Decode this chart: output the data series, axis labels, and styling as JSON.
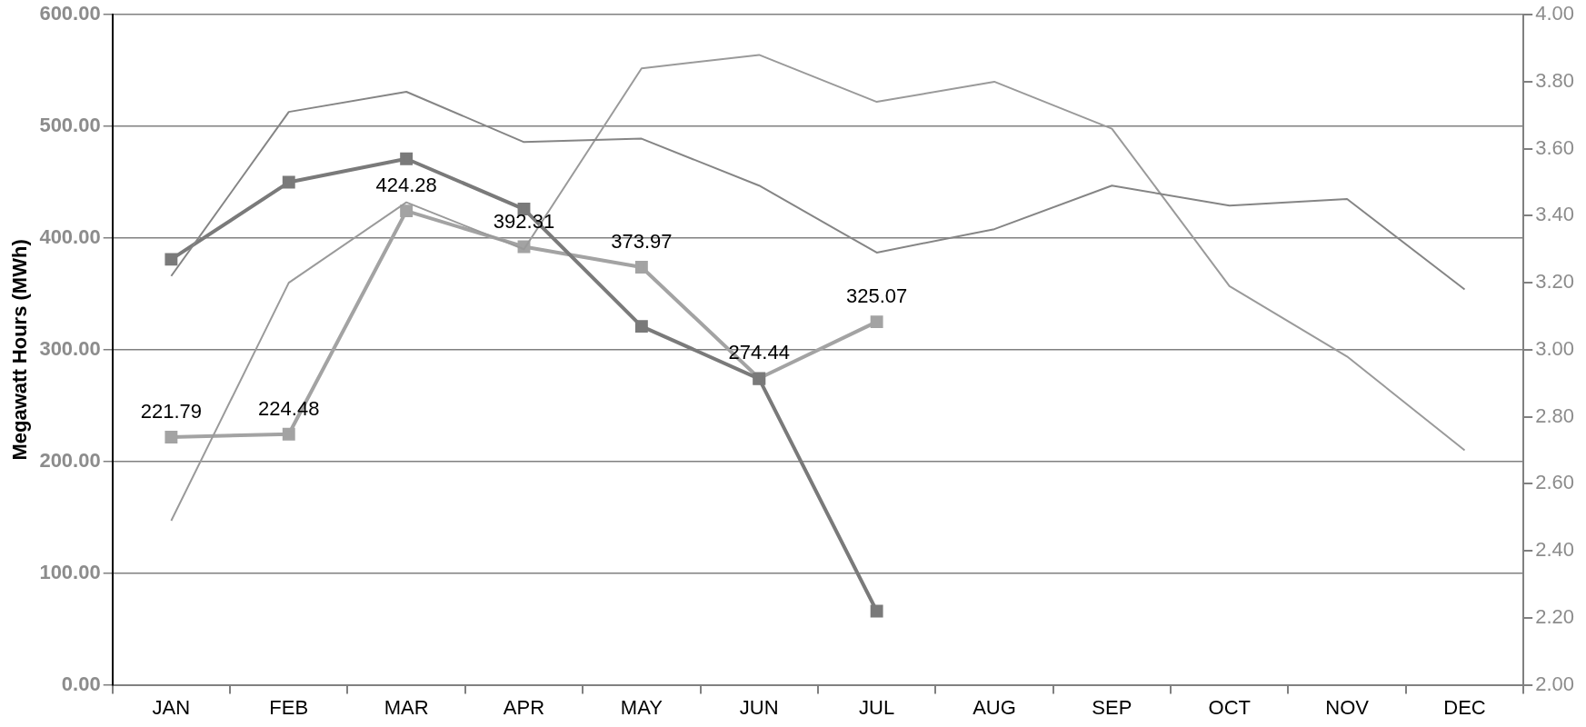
{
  "chart_data": {
    "type": "line",
    "ylabel": "Megawatt Hours (MWh)",
    "categories": [
      "JAN",
      "FEB",
      "MAR",
      "APR",
      "MAY",
      "JUN",
      "JUL",
      "AUG",
      "SEP",
      "OCT",
      "NOV",
      "DEC"
    ],
    "ylim": [
      0,
      600
    ],
    "yticks": [
      {
        "value": 0,
        "label": "0.00"
      },
      {
        "value": 100,
        "label": "100.00"
      },
      {
        "value": 200,
        "label": "200.00"
      },
      {
        "value": 300,
        "label": "300.00"
      },
      {
        "value": 400,
        "label": "400.00"
      },
      {
        "value": 500,
        "label": "500.00"
      },
      {
        "value": 600,
        "label": "600.00"
      }
    ],
    "y2lim": [
      2,
      4
    ],
    "y2ticks": [
      {
        "value": 2,
        "label": "2.00"
      },
      {
        "value": 2.2,
        "label": "2.20"
      },
      {
        "value": 2.4,
        "label": "2.40"
      },
      {
        "value": 2.6,
        "label": "2.60"
      },
      {
        "value": 2.8,
        "label": "2.80"
      },
      {
        "value": 3,
        "label": "3.00"
      },
      {
        "value": 3.2,
        "label": "3.20"
      },
      {
        "value": 3.4,
        "label": "3.40"
      },
      {
        "value": 3.6,
        "label": "3.60"
      },
      {
        "value": 3.8,
        "label": "3.80"
      },
      {
        "value": 4,
        "label": "4.00"
      }
    ],
    "grid": "y",
    "legend": false,
    "series": [
      {
        "color": "#858585",
        "axis": "y2",
        "marker": "none",
        "values": [
          3.22,
          3.71,
          3.77,
          3.62,
          3.63,
          3.49,
          3.29,
          3.36,
          3.49,
          3.43,
          3.45,
          3.18
        ]
      },
      {
        "color": "#9a9a9a",
        "axis": "y2",
        "marker": "none",
        "values": [
          2.49,
          3.2,
          3.44,
          3.3,
          3.84,
          3.88,
          3.74,
          3.8,
          3.66,
          3.19,
          2.98,
          2.7
        ]
      },
      {
        "color": "#7a7a7a",
        "marker": "square",
        "values": [
          381,
          450,
          471,
          426,
          321,
          274,
          66,
          null,
          null,
          null,
          null,
          null
        ]
      },
      {
        "color": "#a3a3a3",
        "marker": "square",
        "values": [
          221.79,
          224.48,
          424.28,
          392.31,
          373.97,
          274.44,
          325.07,
          null,
          null,
          null,
          null,
          null
        ],
        "value_labels": [
          "221.79",
          "224.48",
          "424.28",
          "392.31",
          "373.97",
          "274.44",
          "325.07",
          null,
          null,
          null,
          null,
          null
        ]
      }
    ]
  }
}
